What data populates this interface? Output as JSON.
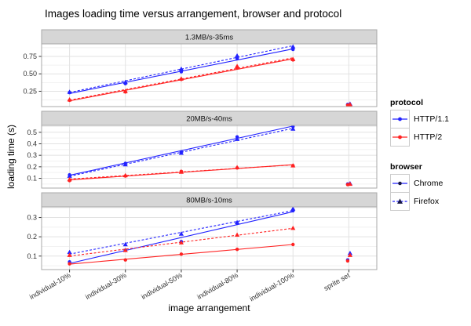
{
  "title": "Images loading time versus arrangement, browser and protocol",
  "chart_data": {
    "type": "scatter",
    "title": "Images loading time versus arrangement, browser and protocol",
    "xlabel": "image arrangement",
    "ylabel": "loading time (s)",
    "grid": "on",
    "legend_position": "right",
    "categories": [
      "individual-10%",
      "individual-30%",
      "individual-50%",
      "individual-80%",
      "individual-100%",
      "sprite set"
    ],
    "legend": {
      "protocol_title": "protocol",
      "browser_title": "browser",
      "protocol": [
        {
          "label": "HTTP/1.1",
          "color": "#2222ff"
        },
        {
          "label": "HTTP/2",
          "color": "#ff2222"
        }
      ],
      "browser": [
        {
          "label": "Chrome",
          "line_color": "#2222ff",
          "marker_color": "#161645",
          "marker": "circle",
          "dash": "none"
        },
        {
          "label": "Firefox",
          "line_color": "#2222ff",
          "marker_color": "#161645",
          "marker": "triangle",
          "dash": "3,2.2"
        }
      ]
    },
    "facets": [
      {
        "label": "1.3MB/s-35ms",
        "ylim": [
          0.03,
          0.93
        ],
        "yticks": [
          0.25,
          0.5,
          0.75
        ],
        "ytick_labels": [
          "0.25",
          "0.50",
          "0.75"
        ],
        "series": [
          {
            "protocol": "HTTP/1.1",
            "browser": "Chrome",
            "values": [
              0.23,
              0.36,
              0.53,
              0.72,
              0.85
            ],
            "sprite": 0.06
          },
          {
            "protocol": "HTTP/1.1",
            "browser": "Firefox",
            "values": [
              0.24,
              0.38,
              0.57,
              0.76,
              0.89
            ],
            "sprite": 0.07
          },
          {
            "protocol": "HTTP/2",
            "browser": "Chrome",
            "values": [
              0.12,
              0.24,
              0.42,
              0.59,
              0.7
            ],
            "sprite": 0.05
          },
          {
            "protocol": "HTTP/2",
            "browser": "Firefox",
            "values": [
              0.13,
              0.25,
              0.43,
              0.61,
              0.71
            ],
            "sprite": 0.06
          }
        ]
      },
      {
        "label": "20MB/s-40ms",
        "ylim": [
          0.015,
          0.56
        ],
        "yticks": [
          0.1,
          0.2,
          0.3,
          0.4,
          0.5
        ],
        "ytick_labels": [
          "0.1",
          "0.2",
          "0.3",
          "0.4",
          "0.5"
        ],
        "series": [
          {
            "protocol": "HTTP/1.1",
            "browser": "Chrome",
            "values": [
              0.13,
              0.23,
              0.33,
              0.46,
              0.55
            ],
            "sprite": 0.05
          },
          {
            "protocol": "HTTP/1.1",
            "browser": "Firefox",
            "values": [
              0.12,
              0.22,
              0.32,
              0.44,
              0.53
            ],
            "sprite": 0.055
          },
          {
            "protocol": "HTTP/2",
            "browser": "Chrome",
            "values": [
              0.08,
              0.12,
              0.16,
              0.19,
              0.21
            ],
            "sprite": 0.045
          },
          {
            "protocol": "HTTP/2",
            "browser": "Firefox",
            "values": [
              0.09,
              0.125,
              0.155,
              0.195,
              0.21
            ],
            "sprite": 0.05
          }
        ]
      },
      {
        "label": "80MB/s-10ms",
        "ylim": [
          0.03,
          0.355
        ],
        "yticks": [
          0.1,
          0.2,
          0.3
        ],
        "ytick_labels": [
          "0.1",
          "0.2",
          "0.3"
        ],
        "series": [
          {
            "protocol": "HTTP/1.1",
            "browser": "Chrome",
            "values": [
              0.07,
              0.13,
              0.175,
              0.27,
              0.335
            ],
            "sprite": 0.08
          },
          {
            "protocol": "HTTP/1.1",
            "browser": "Firefox",
            "values": [
              0.12,
              0.16,
              0.215,
              0.275,
              0.345
            ],
            "sprite": 0.115
          },
          {
            "protocol": "HTTP/2",
            "browser": "Chrome",
            "values": [
              0.06,
              0.08,
              0.11,
              0.135,
              0.16
            ],
            "sprite": 0.075
          },
          {
            "protocol": "HTTP/2",
            "browser": "Firefox",
            "values": [
              0.105,
              0.13,
              0.17,
              0.21,
              0.245
            ],
            "sprite": 0.105
          }
        ]
      }
    ],
    "style": {
      "strip_fill": "#d6d6d6",
      "strip_border": "#a8a8a8",
      "panel_border": "#a8a8a8",
      "grid_major": "#e2e2e2",
      "grid_minor": "#f1f1f1",
      "tick_color": "#333333",
      "tick_label_color": "#333333"
    }
  }
}
